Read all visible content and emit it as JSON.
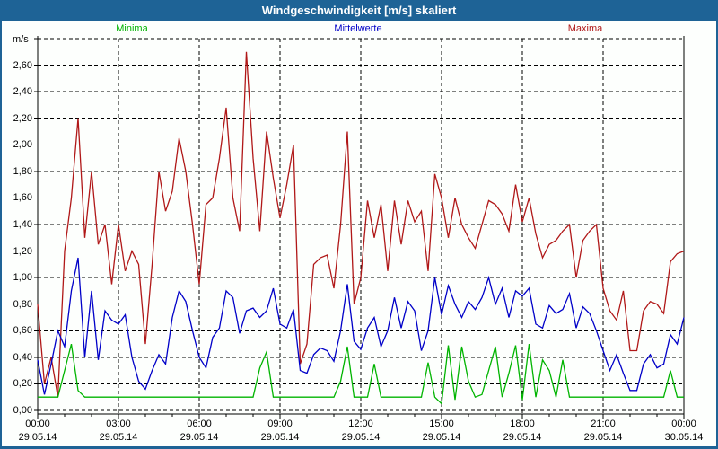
{
  "title": "Windgeschwindigkeit [m/s] skaliert",
  "y_axis_unit": "m/s",
  "legend": [
    {
      "label": "Minima",
      "color": "#00b400"
    },
    {
      "label": "Mittelwerte",
      "color": "#0000c8"
    },
    {
      "label": "Maxima",
      "color": "#b01818"
    }
  ],
  "colors": {
    "titlebar": "#1e6396",
    "frame": "#1e6396",
    "background": "#fdfffd",
    "grid": "#000000",
    "minima_line": "#00b400",
    "mittelwerte_line": "#0000c8",
    "maxima_line": "#b01818"
  },
  "chart_data": {
    "type": "line",
    "title": "Windgeschwindigkeit [m/s] skaliert",
    "xlabel": "",
    "ylabel": "m/s",
    "ylim": [
      0,
      2.8
    ],
    "y_tick_step": 0.2,
    "y_tick_labels": [
      "0,00",
      "0,20",
      "0,40",
      "0,60",
      "0,80",
      "1,00",
      "1,20",
      "1,40",
      "1,60",
      "1,80",
      "2,00",
      "2,20",
      "2,40",
      "2,60"
    ],
    "grid": "dashed",
    "x_range_hours": [
      0,
      24
    ],
    "x_major_tick_hours": 3,
    "x_minor_tick_hours": 1,
    "sample_interval_minutes": 15,
    "x_ticks": [
      {
        "hour": 0,
        "time": "00:00",
        "date": "29.05.14"
      },
      {
        "hour": 3,
        "time": "03:00",
        "date": "29.05.14"
      },
      {
        "hour": 6,
        "time": "06:00",
        "date": "29.05.14"
      },
      {
        "hour": 9,
        "time": "09:00",
        "date": "29.05.14"
      },
      {
        "hour": 12,
        "time": "12:00",
        "date": "29.05.14"
      },
      {
        "hour": 15,
        "time": "15:00",
        "date": "29.05.14"
      },
      {
        "hour": 18,
        "time": "18:00",
        "date": "29.05.14"
      },
      {
        "hour": 21,
        "time": "21:00",
        "date": "29.05.14"
      },
      {
        "hour": 24,
        "time": "00:00",
        "date": "30.05.14"
      }
    ],
    "series": [
      {
        "name": "Maxima",
        "color": "#b01818",
        "values": [
          0.8,
          0.2,
          0.4,
          0.1,
          1.2,
          1.6,
          2.2,
          1.3,
          1.8,
          1.25,
          1.4,
          0.95,
          1.4,
          1.05,
          1.2,
          1.1,
          0.5,
          1.1,
          1.8,
          1.5,
          1.65,
          2.05,
          1.8,
          1.4,
          0.95,
          1.55,
          1.6,
          1.9,
          2.28,
          1.6,
          1.35,
          2.7,
          1.9,
          1.35,
          2.1,
          1.75,
          1.45,
          1.7,
          2.0,
          0.35,
          0.5,
          1.1,
          1.15,
          1.17,
          0.92,
          1.4,
          2.1,
          0.8,
          1.0,
          1.58,
          1.3,
          1.55,
          1.05,
          1.58,
          1.25,
          1.58,
          1.42,
          1.5,
          1.05,
          1.78,
          1.6,
          1.3,
          1.6,
          1.4,
          1.3,
          1.22,
          1.4,
          1.58,
          1.55,
          1.48,
          1.35,
          1.7,
          1.42,
          1.6,
          1.33,
          1.15,
          1.25,
          1.28,
          1.35,
          1.4,
          1.0,
          1.28,
          1.35,
          1.4,
          0.92,
          0.75,
          0.68,
          0.9,
          0.45,
          0.45,
          0.75,
          0.82,
          0.8,
          0.73,
          1.12,
          1.18,
          1.2
        ]
      },
      {
        "name": "Mittelwerte",
        "color": "#0000c8",
        "values": [
          0.38,
          0.12,
          0.35,
          0.6,
          0.48,
          0.9,
          1.15,
          0.4,
          0.9,
          0.38,
          0.75,
          0.68,
          0.65,
          0.72,
          0.4,
          0.22,
          0.16,
          0.3,
          0.42,
          0.35,
          0.7,
          0.9,
          0.82,
          0.6,
          0.4,
          0.32,
          0.55,
          0.62,
          0.9,
          0.85,
          0.58,
          0.75,
          0.77,
          0.7,
          0.75,
          0.92,
          0.65,
          0.62,
          0.76,
          0.3,
          0.28,
          0.42,
          0.47,
          0.45,
          0.37,
          0.6,
          0.95,
          0.52,
          0.46,
          0.62,
          0.7,
          0.48,
          0.6,
          0.85,
          0.62,
          0.82,
          0.75,
          0.45,
          0.6,
          1.0,
          0.72,
          0.94,
          0.8,
          0.7,
          0.82,
          0.76,
          0.85,
          1.0,
          0.8,
          0.92,
          0.7,
          0.9,
          0.86,
          0.92,
          0.65,
          0.62,
          0.79,
          0.73,
          0.76,
          0.88,
          0.62,
          0.78,
          0.73,
          0.6,
          0.45,
          0.3,
          0.42,
          0.28,
          0.15,
          0.15,
          0.35,
          0.42,
          0.32,
          0.35,
          0.57,
          0.5,
          0.7
        ]
      },
      {
        "name": "Minima",
        "color": "#00b400",
        "values": [
          0.1,
          0.1,
          0.1,
          0.1,
          0.3,
          0.5,
          0.15,
          0.1,
          0.1,
          0.1,
          0.1,
          0.1,
          0.1,
          0.1,
          0.1,
          0.1,
          0.1,
          0.1,
          0.1,
          0.1,
          0.1,
          0.1,
          0.1,
          0.1,
          0.1,
          0.1,
          0.1,
          0.1,
          0.1,
          0.1,
          0.1,
          0.1,
          0.1,
          0.32,
          0.44,
          0.1,
          0.1,
          0.1,
          0.1,
          0.1,
          0.1,
          0.1,
          0.1,
          0.1,
          0.1,
          0.22,
          0.48,
          0.1,
          0.1,
          0.1,
          0.35,
          0.1,
          0.1,
          0.1,
          0.1,
          0.1,
          0.1,
          0.1,
          0.36,
          0.1,
          0.05,
          0.49,
          0.08,
          0.48,
          0.22,
          0.1,
          0.12,
          0.3,
          0.48,
          0.1,
          0.28,
          0.49,
          0.08,
          0.5,
          0.1,
          0.38,
          0.3,
          0.1,
          0.38,
          0.1,
          0.1,
          0.1,
          0.1,
          0.1,
          0.1,
          0.1,
          0.1,
          0.1,
          0.1,
          0.1,
          0.1,
          0.1,
          0.1,
          0.1,
          0.3,
          0.1,
          0.1
        ]
      }
    ]
  }
}
